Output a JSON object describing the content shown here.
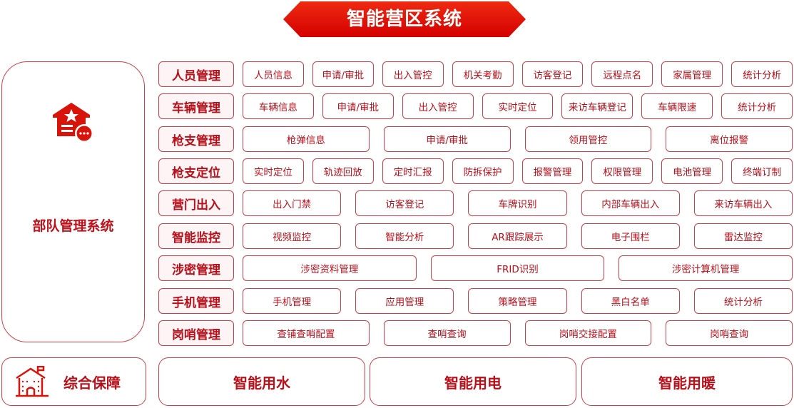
{
  "title": "智能营区系统",
  "colors": {
    "accent": "#d80c0c",
    "border": "#c8414a",
    "text": "#b8101a"
  },
  "left_panel": {
    "title": "部队管理系统",
    "icon": "house-star-chat-icon"
  },
  "rows": [
    {
      "category": "人员管理",
      "items": [
        "人员信息",
        "申请/审批",
        "出入管控",
        "机关考勤",
        "访客登记",
        "远程点名",
        "家属管理",
        "统计分析"
      ]
    },
    {
      "category": "车辆管理",
      "items": [
        "车辆信息",
        "申请/审批",
        "出入管控",
        "实时定位",
        "来访车辆登记",
        "车辆限速",
        "统计分析"
      ]
    },
    {
      "category": "枪支管理",
      "items": [
        "枪弹信息",
        "申请/审批",
        "领用管控",
        "离位报警"
      ]
    },
    {
      "category": "枪支定位",
      "items": [
        "实时定位",
        "轨迹回放",
        "定时汇报",
        "防拆保护",
        "报警管理",
        "权限管理",
        "电池管理",
        "终端订制"
      ]
    },
    {
      "category": "营门出入",
      "items": [
        "出入门禁",
        "访客登记",
        "车牌识别",
        "内部车辆出入",
        "来访车辆出入"
      ]
    },
    {
      "category": "智能监控",
      "items": [
        "视频监控",
        "智能分析",
        "AR跟踪展示",
        "电子围栏",
        "雷达监控"
      ]
    },
    {
      "category": "涉密管理",
      "items": [
        "涉密资料管理",
        "FRID识别",
        "涉密计算机管理"
      ]
    },
    {
      "category": "手机管理",
      "items": [
        "手机管理",
        "应用管理",
        "策略管理",
        "黑白名单",
        "统计分析"
      ]
    },
    {
      "category": "岗哨管理",
      "items": [
        "查铺查哨配置",
        "查哨查询",
        "岗哨交接配置",
        "岗哨查询"
      ]
    }
  ],
  "bottom": {
    "support": {
      "label": "综合保障",
      "icon": "building-flag-icon"
    },
    "items": [
      "智能用水",
      "智能用电",
      "智能用暖"
    ]
  }
}
